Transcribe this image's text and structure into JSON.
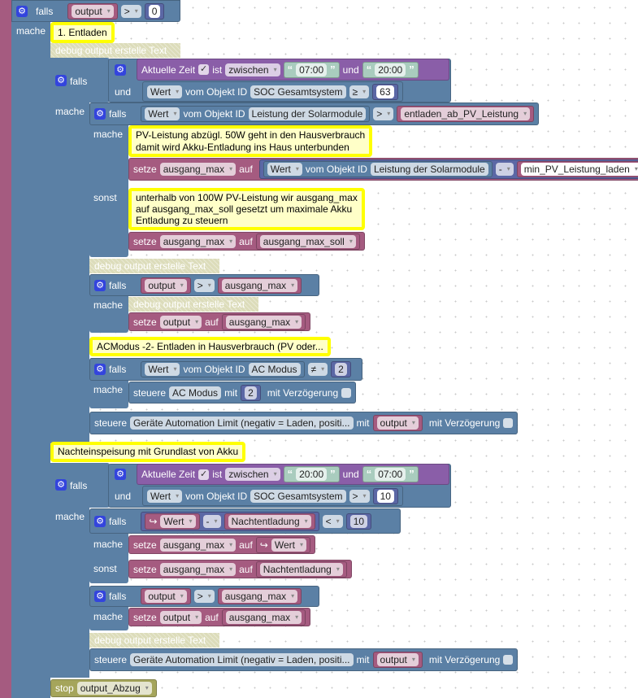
{
  "outer_if": {
    "label": "falls",
    "var": "output",
    "op": ">",
    "num": "0",
    "do": "mache"
  },
  "comment1": "1. Entladen",
  "debug": "debug output erstelle Text ...",
  "if2": {
    "label": "falls",
    "do": "mache",
    "and": "und",
    "time": {
      "label": "Aktuelle Zeit",
      "check": "✓",
      "is": "ist",
      "mode": "zwischen",
      "from": "07:00",
      "and": "und",
      "to": "20:00"
    },
    "soc": {
      "value": "Wert",
      "of": "vom Objekt ID",
      "obj": "SOC Gesamtsystem",
      "op": "≥",
      "num": "63"
    }
  },
  "if3": {
    "label": "falls",
    "do": "mache",
    "else": "sonst",
    "value": "Wert",
    "of": "vom Objekt ID",
    "obj": "Leistung der Solarmodule",
    "op": ">",
    "var": "entladen_ab_PV_Leistung",
    "comment_do": [
      "PV-Leistung abzügl. 50W geht in den Hausverbrauch",
      "damit wird Akku-Entladung ins Haus unterbunden"
    ],
    "set1": {
      "set": "setze",
      "var": "ausgang_max",
      "to": "auf",
      "value": "Wert",
      "of": "vom Objekt ID",
      "obj": "Leistung der Solarmodule",
      "op": "-",
      "var2": "min_PV_Leistung_laden"
    },
    "comment_else": [
      "unterhalb von 100W PV-Leistung wir ausgang_max",
      "auf ausgang_max_soll gesetzt um maximale Akku",
      "Entladung zu steuern"
    ],
    "set2": {
      "set": "setze",
      "var": "ausgang_max",
      "to": "auf",
      "var2": "ausgang_max_soll"
    }
  },
  "if4": {
    "label": "falls",
    "var": "output",
    "op": ">",
    "var2": "ausgang_max",
    "do": "mache",
    "set": "setze",
    "setvar": "output",
    "to": "auf",
    "setval": "ausgang_max"
  },
  "comment2": "ACModus -2- Entladen in Hausverbrauch (PV oder...",
  "if5": {
    "label": "falls",
    "value": "Wert",
    "of": "vom Objekt ID",
    "obj": "AC Modus",
    "op": "≠",
    "num": "2",
    "do": "mache",
    "control": {
      "label": "steuere",
      "obj": "AC Modus",
      "with": "mit",
      "num": "2",
      "delay": "mit Verzögerung"
    }
  },
  "control1": {
    "label": "steuere",
    "obj": "Geräte Automation Limit (negativ = Laden, positi...",
    "with": "mit",
    "var": "output",
    "delay": "mit Verzögerung"
  },
  "comment3": "Nachteinspeisung mit Grundlast von Akku",
  "if6": {
    "label": "falls",
    "do": "mache",
    "and": "und",
    "time": {
      "label": "Aktuelle Zeit",
      "check": "✓",
      "is": "ist",
      "mode": "zwischen",
      "from": "20:00",
      "and": "und",
      "to": "07:00"
    },
    "soc": {
      "value": "Wert",
      "of": "vom Objekt ID",
      "obj": "SOC Gesamtsystem",
      "op": ">",
      "num": "10"
    }
  },
  "if7": {
    "label": "falls",
    "value": "Wert",
    "op": "-",
    "var": "Nachtentladung",
    "cmp": "<",
    "num": "10",
    "do": "mache",
    "else": "sonst",
    "set1": {
      "set": "setze",
      "var": "ausgang_max",
      "to": "auf",
      "value": "Wert"
    },
    "set2": {
      "set": "setze",
      "var": "ausgang_max",
      "to": "auf",
      "var2": "Nachtentladung"
    }
  },
  "if8": {
    "label": "falls",
    "var": "output",
    "op": ">",
    "var2": "ausgang_max",
    "do": "mache",
    "set": "setze",
    "setvar": "output",
    "to": "auf",
    "setval": "ausgang_max"
  },
  "control2": {
    "label": "steuere",
    "obj": "Geräte Automation Limit (negativ = Laden, positi...",
    "with": "mit",
    "var": "output",
    "delay": "mit Verzögerung"
  },
  "stop": {
    "label": "stop",
    "var": "output_Abzug"
  }
}
